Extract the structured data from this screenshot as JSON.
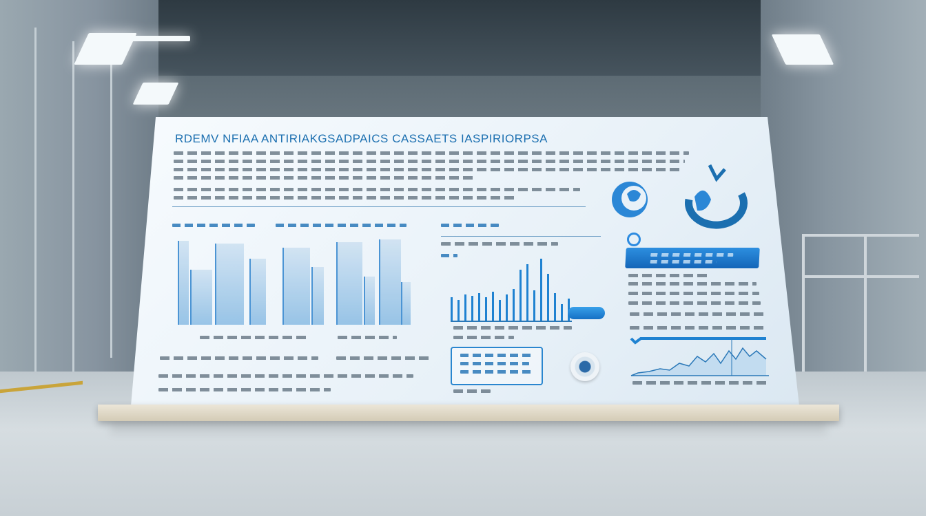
{
  "board": {
    "title": "RDEMV NFIAA ANTIRIAKGSADPAICS CASSAETS IASPIRIORPSA"
  },
  "colors": {
    "accent": "#1b6fb0",
    "bar_fill": "#8fbfe5",
    "bar_edge": "#3a8ad0",
    "thin_bar": "#1f82d1",
    "board_bg": "#f7fbfe",
    "floor": "#d6dde1"
  },
  "icons": [
    "gear-emblem-icon",
    "circular-logo-icon",
    "knob-icon"
  ]
}
